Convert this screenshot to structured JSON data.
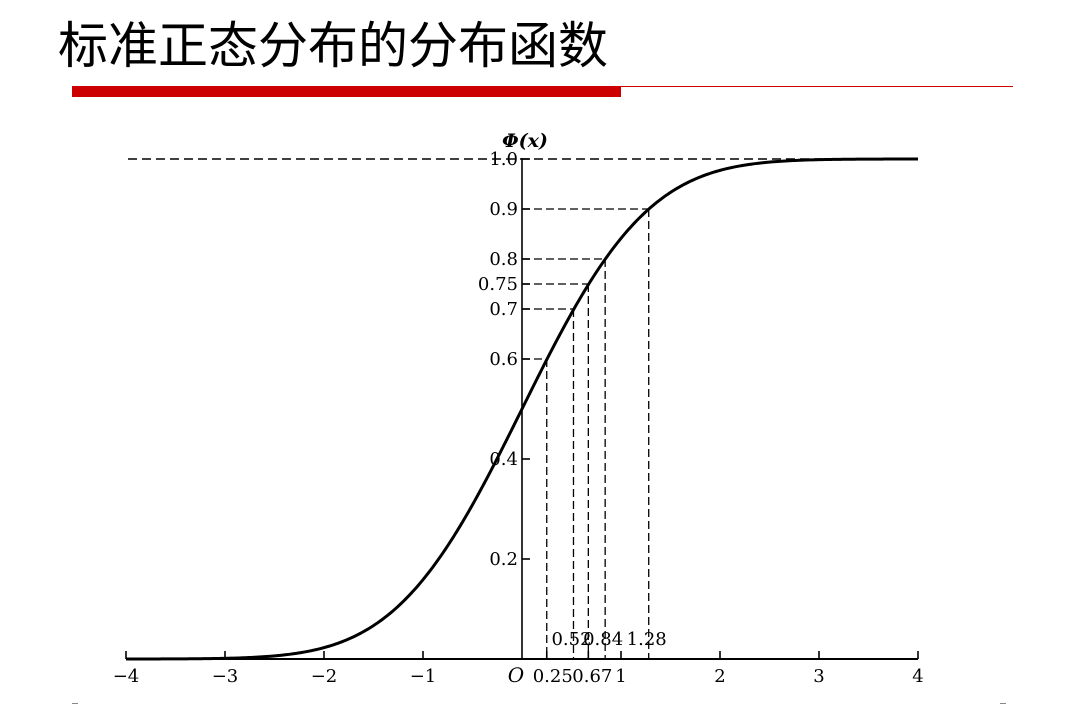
{
  "slide": {
    "title": "标准正态分布的分布函数",
    "accent_color": "#cc0000"
  },
  "chart_data": {
    "type": "line",
    "title": "",
    "xlabel": "",
    "ylabel": "Φ(x)",
    "xlim": [
      -4,
      4
    ],
    "ylim": [
      0,
      1.0
    ],
    "grid": false,
    "origin_label": "O",
    "series": [
      {
        "function": "standard normal CDF",
        "x": [
          -4,
          -3.5,
          -3,
          -2.5,
          -2,
          -1.5,
          -1,
          -0.5,
          0,
          0.5,
          1,
          1.5,
          2,
          2.5,
          3,
          3.5,
          4
        ],
        "y": [
          0.0,
          0.0002,
          0.0013,
          0.0062,
          0.0228,
          0.0668,
          0.1587,
          0.3085,
          0.5,
          0.6915,
          0.8413,
          0.9332,
          0.9772,
          0.9938,
          0.9987,
          0.9998,
          1.0
        ]
      }
    ],
    "x_ticks": [
      {
        "value": -4,
        "label": "−4"
      },
      {
        "value": -3,
        "label": "−3"
      },
      {
        "value": -2,
        "label": "−2"
      },
      {
        "value": -1,
        "label": "−1"
      },
      {
        "value": 0.25,
        "label": "0.25"
      },
      {
        "value": 0.67,
        "label": "0.67"
      },
      {
        "value": 1,
        "label": "1"
      },
      {
        "value": 2,
        "label": "2"
      },
      {
        "value": 3,
        "label": "3"
      },
      {
        "value": 4,
        "label": "4"
      }
    ],
    "y_ticks": [
      {
        "value": 0.2,
        "label": "0.2"
      },
      {
        "value": 0.4,
        "label": "0.4"
      },
      {
        "value": 0.6,
        "label": "0.6"
      },
      {
        "value": 0.7,
        "label": "0.7"
      },
      {
        "value": 0.75,
        "label": "0.75"
      },
      {
        "value": 0.8,
        "label": "0.8"
      },
      {
        "value": 0.9,
        "label": "0.9"
      },
      {
        "value": 1.0,
        "label": "1.0"
      }
    ],
    "asymptote": {
      "y": 1.0
    },
    "reference_points": [
      {
        "x": 0.25,
        "y": 0.6
      },
      {
        "x": 0.52,
        "y": 0.7,
        "label": "0.52"
      },
      {
        "x": 0.67,
        "y": 0.75
      },
      {
        "x": 0.84,
        "y": 0.8,
        "label": "0.84"
      },
      {
        "x": 1.28,
        "y": 0.9,
        "label": "1.28"
      }
    ]
  }
}
